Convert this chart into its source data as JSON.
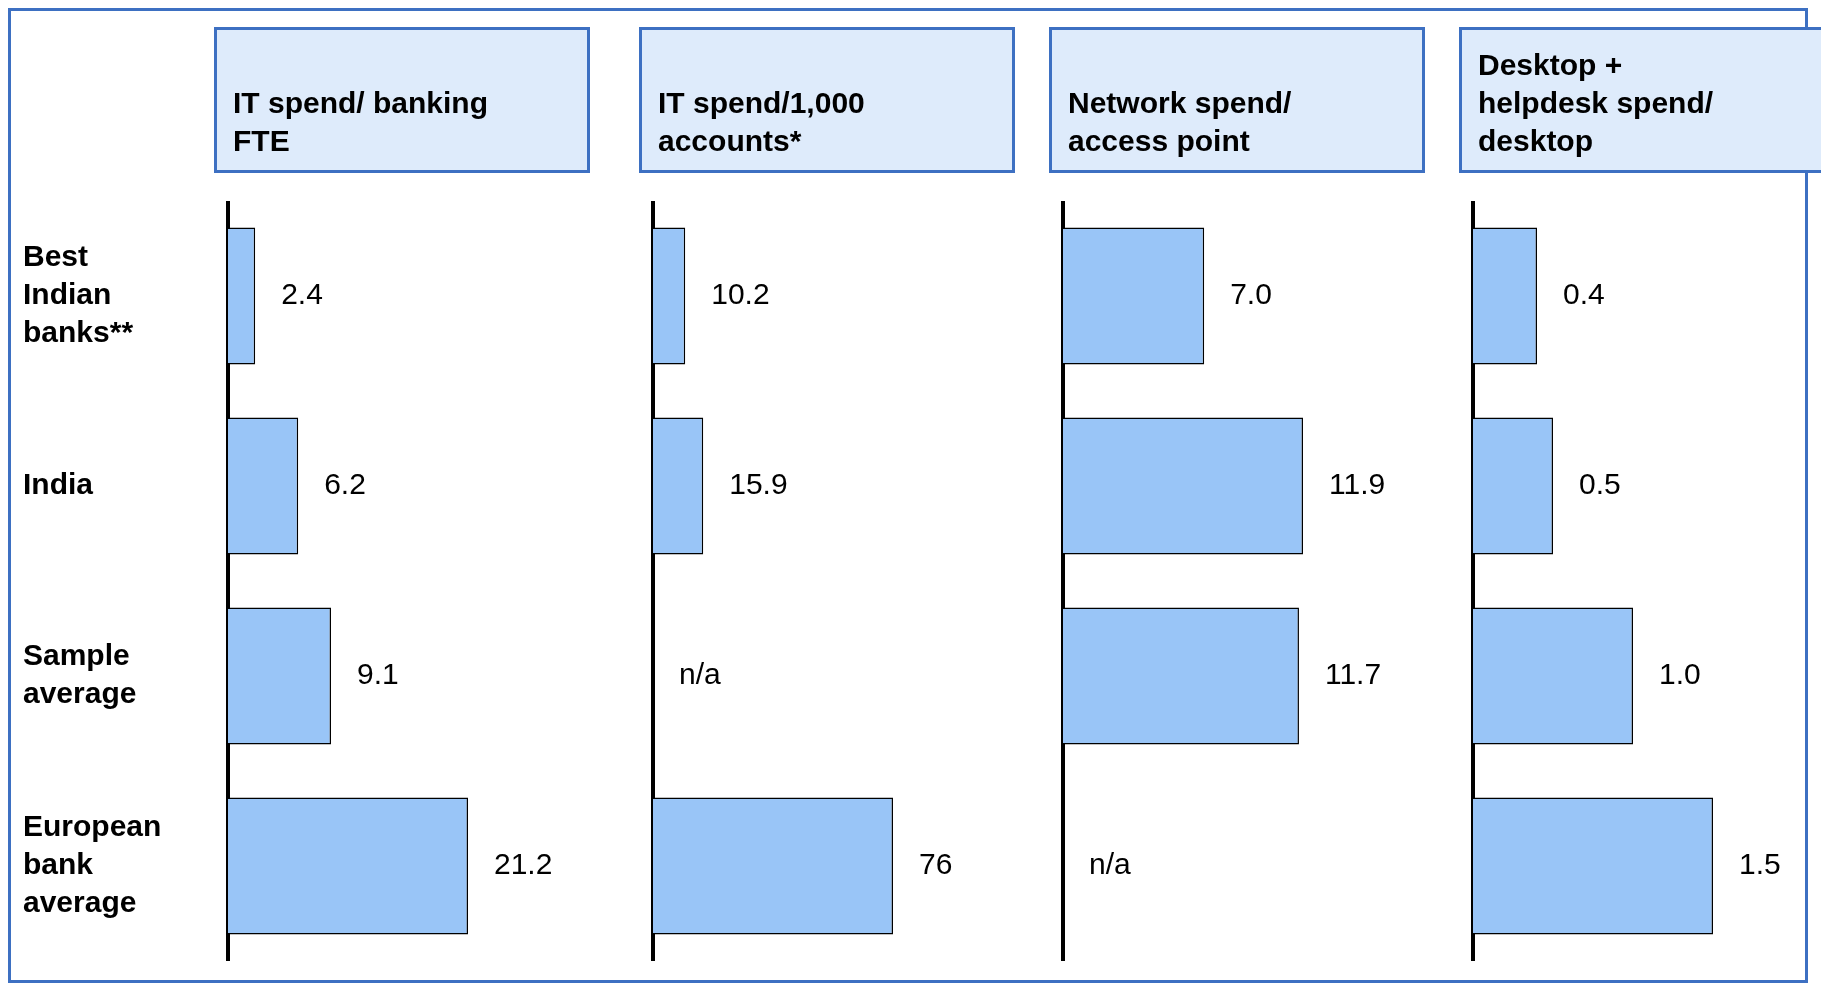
{
  "chart_data": [
    {
      "type": "bar",
      "orientation": "horizontal",
      "title": "IT spend/ banking FTE",
      "categories": [
        "Best Indian banks**",
        "India",
        "Sample average",
        "European bank average"
      ],
      "values": [
        2.4,
        6.2,
        9.1,
        21.2
      ],
      "value_labels": [
        "2.4",
        "6.2",
        "9.1",
        "21.2"
      ],
      "color": "#99c5f7",
      "tick_labels": "y",
      "grid": false,
      "legend": false
    },
    {
      "type": "bar",
      "orientation": "horizontal",
      "title": "IT spend/1,000 accounts*",
      "categories": [
        null,
        null,
        null,
        null
      ],
      "values": [
        10.2,
        15.9,
        null,
        76
      ],
      "value_labels": [
        "10.2",
        "15.9",
        "n/a",
        "76"
      ],
      "color": "#99c5f7",
      "tick_labels": false,
      "grid": false,
      "legend": false
    },
    {
      "type": "bar",
      "orientation": "horizontal",
      "title": "Network spend/ access point",
      "categories": [
        null,
        null,
        null,
        null
      ],
      "values": [
        7.0,
        11.9,
        11.7,
        null
      ],
      "value_labels": [
        "7.0",
        "11.9",
        "11.7",
        "n/a"
      ],
      "color": "#99c5f7",
      "tick_labels": false,
      "grid": false,
      "legend": false
    },
    {
      "type": "bar",
      "orientation": "horizontal",
      "title": "Desktop + helpdesk spend/ desktop",
      "categories": [
        null,
        null,
        null,
        null
      ],
      "values": [
        0.4,
        0.5,
        1.0,
        1.5
      ],
      "value_labels": [
        "0.4",
        "0.5",
        "1.0",
        "1.5"
      ],
      "color": "#99c5f7",
      "tick_labels": false,
      "grid": false,
      "legend": false
    }
  ]
}
